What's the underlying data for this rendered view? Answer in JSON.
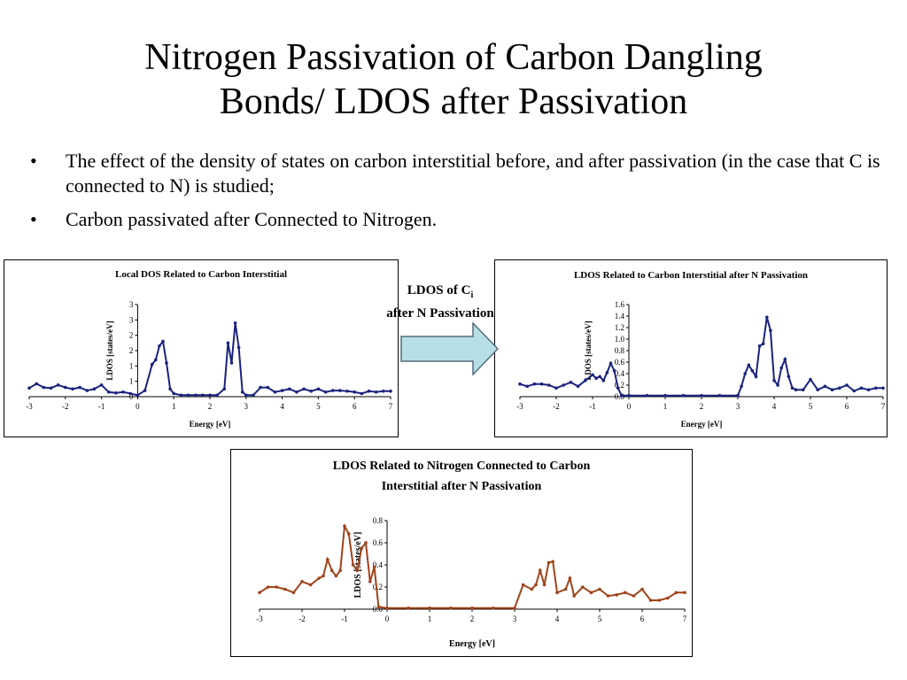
{
  "slide": {
    "title_line1": "Nitrogen Passivation of Carbon Dangling",
    "title_line2": "Bonds/ LDOS after Passivation",
    "bullets": [
      "The effect of the density of states on carbon interstitial before, and after passivation (in the case that C is connected to N) is studied;",
      "Carbon passivated after Connected to Nitrogen."
    ],
    "bullet_symbol": "•",
    "arrow_label_prefix": "LDOS of C",
    "arrow_label_sub": "i",
    "arrow_label_line2": "after N Passivation",
    "colors": {
      "arrow_fill": "#b7e0e6",
      "arrow_stroke": "#556b7a"
    }
  },
  "chart_data": [
    {
      "type": "line",
      "title": "Local DOS Related to Carbon Interstitial",
      "xlabel": "Energy [eV]",
      "ylabel": "LDOS [states/eV]",
      "xlim": [
        -3,
        7
      ],
      "ylim": [
        0,
        3
      ],
      "x_ticks": [
        -3,
        -2,
        -1,
        0,
        1,
        2,
        3,
        4,
        5,
        6,
        7
      ],
      "y_ticks": [
        0,
        0.5,
        1,
        1.5,
        2,
        2.5,
        3
      ],
      "y_tick_labels": [
        "0",
        "1",
        "1",
        "2",
        "2",
        "3",
        "3"
      ],
      "color": "#1a237e",
      "series": [
        {
          "x": [
            -3,
            -2.8,
            -2.6,
            -2.4,
            -2.2,
            -2,
            -1.8,
            -1.6,
            -1.4,
            -1.2,
            -1,
            -0.8,
            -0.6,
            -0.4,
            -0.2,
            0,
            0.2,
            0.4,
            0.5,
            0.6,
            0.7,
            0.8,
            0.9,
            1,
            1.2,
            1.4,
            1.6,
            1.8,
            2,
            2.2,
            2.4,
            2.5,
            2.6,
            2.7,
            2.8,
            2.9,
            3,
            3.2,
            3.4,
            3.6,
            3.8,
            4,
            4.2,
            4.4,
            4.6,
            4.8,
            5,
            5.2,
            5.4,
            5.6,
            5.8,
            6,
            6.2,
            6.4,
            6.6,
            6.8,
            7
          ],
          "values": [
            0.28,
            0.42,
            0.3,
            0.28,
            0.38,
            0.3,
            0.25,
            0.3,
            0.2,
            0.25,
            0.38,
            0.15,
            0.12,
            0.15,
            0.1,
            0.05,
            0.2,
            1.05,
            1.2,
            1.65,
            1.8,
            1.1,
            0.25,
            0.1,
            0.05,
            0.05,
            0.05,
            0.05,
            0.05,
            0.05,
            0.25,
            1.75,
            1.1,
            2.4,
            1.6,
            0.15,
            0.05,
            0.05,
            0.3,
            0.3,
            0.15,
            0.2,
            0.25,
            0.15,
            0.25,
            0.18,
            0.25,
            0.15,
            0.2,
            0.2,
            0.18,
            0.15,
            0.1,
            0.18,
            0.15,
            0.18,
            0.18
          ]
        }
      ]
    },
    {
      "type": "line",
      "title": "LDOS Related to Carbon Interstitial after N Passivation",
      "xlabel": "Energy [eV]",
      "ylabel": "LDOS [states/eV]",
      "xlim": [
        -3,
        7
      ],
      "ylim": [
        0,
        1.6
      ],
      "x_ticks": [
        -3,
        -2,
        -1,
        0,
        1,
        2,
        3,
        4,
        5,
        6,
        7
      ],
      "y_ticks": [
        0,
        0.2,
        0.4,
        0.6,
        0.8,
        1.0,
        1.2,
        1.4,
        1.6
      ],
      "y_tick_labels": [
        "0.0",
        "0.2",
        "0.4",
        "0.6",
        "0.8",
        "1.0",
        "1.2",
        "1.4",
        "1.6"
      ],
      "color": "#1a237e",
      "series": [
        {
          "x": [
            -3,
            -2.8,
            -2.6,
            -2.4,
            -2.2,
            -2,
            -1.8,
            -1.6,
            -1.4,
            -1.2,
            -1,
            -0.9,
            -0.8,
            -0.7,
            -0.6,
            -0.5,
            -0.4,
            -0.3,
            -0.2,
            0,
            0.5,
            1,
            1.5,
            2,
            2.5,
            3,
            3.1,
            3.2,
            3.3,
            3.4,
            3.5,
            3.6,
            3.7,
            3.8,
            3.9,
            4,
            4.1,
            4.2,
            4.3,
            4.4,
            4.5,
            4.6,
            4.8,
            5,
            5.2,
            5.4,
            5.6,
            5.8,
            6,
            6.2,
            6.4,
            6.6,
            6.8,
            7
          ],
          "values": [
            0.22,
            0.18,
            0.22,
            0.22,
            0.2,
            0.15,
            0.2,
            0.25,
            0.18,
            0.28,
            0.38,
            0.32,
            0.35,
            0.28,
            0.42,
            0.58,
            0.45,
            0.15,
            0.02,
            0.02,
            0.02,
            0.02,
            0.02,
            0.02,
            0.02,
            0.02,
            0.18,
            0.4,
            0.55,
            0.45,
            0.35,
            0.88,
            0.92,
            1.38,
            1.15,
            0.28,
            0.2,
            0.5,
            0.65,
            0.35,
            0.15,
            0.12,
            0.12,
            0.3,
            0.12,
            0.18,
            0.12,
            0.15,
            0.2,
            0.1,
            0.15,
            0.12,
            0.15,
            0.15
          ]
        }
      ]
    },
    {
      "type": "line",
      "title": "LDOS Related to Nitrogen Connected to Carbon Interstitial after N Passivation",
      "title_line1": "LDOS Related to Nitrogen Connected to Carbon",
      "title_line2": "Interstitial after N Passivation",
      "xlabel": "Energy [eV]",
      "ylabel": "LDOS [states/eV]",
      "xlim": [
        -3,
        7
      ],
      "ylim": [
        0,
        0.8
      ],
      "x_ticks": [
        -3,
        -2,
        -1,
        0,
        1,
        2,
        3,
        4,
        5,
        6,
        7
      ],
      "y_ticks": [
        0,
        0.2,
        0.4,
        0.6,
        0.8
      ],
      "y_tick_labels": [
        "0.0",
        "0.2",
        "0.4",
        "0.6",
        "0.8"
      ],
      "color": "#a0431a",
      "series": [
        {
          "x": [
            -3,
            -2.8,
            -2.6,
            -2.4,
            -2.2,
            -2,
            -1.8,
            -1.6,
            -1.5,
            -1.4,
            -1.3,
            -1.2,
            -1.1,
            -1,
            -0.9,
            -0.8,
            -0.7,
            -0.6,
            -0.5,
            -0.4,
            -0.3,
            -0.2,
            0,
            0.5,
            1,
            1.5,
            2,
            2.5,
            3,
            3.2,
            3.4,
            3.5,
            3.6,
            3.7,
            3.8,
            3.9,
            4,
            4.2,
            4.3,
            4.4,
            4.6,
            4.8,
            5,
            5.2,
            5.4,
            5.6,
            5.8,
            6,
            6.2,
            6.4,
            6.6,
            6.8,
            7
          ],
          "values": [
            0.15,
            0.2,
            0.2,
            0.18,
            0.15,
            0.25,
            0.22,
            0.28,
            0.3,
            0.45,
            0.35,
            0.3,
            0.35,
            0.75,
            0.68,
            0.4,
            0.35,
            0.55,
            0.6,
            0.25,
            0.38,
            0.02,
            0.01,
            0.01,
            0.01,
            0.01,
            0.01,
            0.01,
            0.01,
            0.22,
            0.18,
            0.22,
            0.35,
            0.22,
            0.42,
            0.43,
            0.15,
            0.18,
            0.28,
            0.12,
            0.2,
            0.15,
            0.18,
            0.12,
            0.13,
            0.15,
            0.12,
            0.18,
            0.08,
            0.08,
            0.1,
            0.15,
            0.15
          ]
        }
      ]
    }
  ]
}
